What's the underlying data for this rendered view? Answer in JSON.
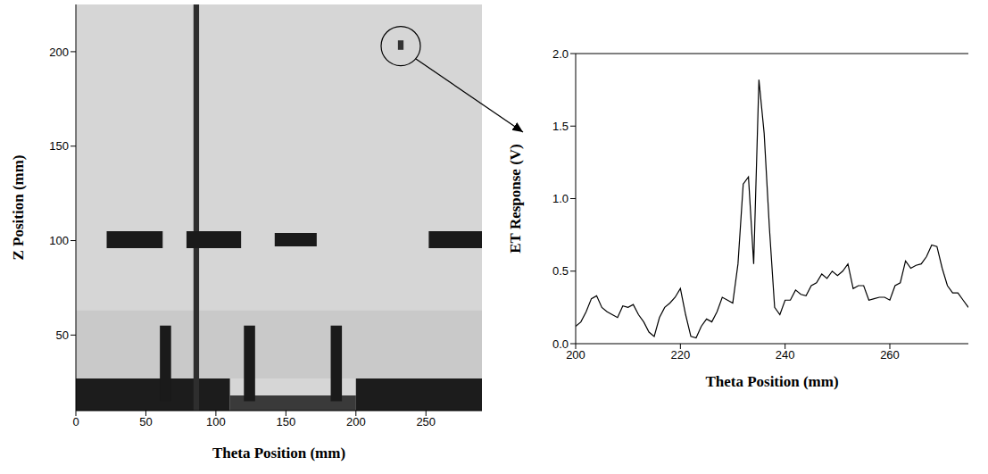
{
  "chart_data": [
    {
      "type": "image",
      "color": "#d6d6d6",
      "x_label": "Theta Position (mm)",
      "y_label": "Z Position (mm)",
      "xlim": [
        0,
        290
      ],
      "xticks": [
        0,
        50,
        100,
        150,
        200,
        250
      ],
      "ylim": [
        10,
        225
      ],
      "yticks": [
        50,
        100,
        150,
        200
      ],
      "regions": [
        {
          "x": [
            0,
            290
          ],
          "y": [
            27,
            63
          ],
          "color": "#c9c9c9"
        },
        {
          "x": [
            0,
            110
          ],
          "y": [
            10,
            27
          ],
          "color": "#1c1c1c"
        },
        {
          "x": [
            110,
            200
          ],
          "y": [
            10,
            18
          ],
          "color": "#3a3a3a"
        },
        {
          "x": [
            200,
            290
          ],
          "y": [
            10,
            27
          ],
          "color": "#1c1c1c"
        },
        {
          "x": [
            84,
            88
          ],
          "y": [
            10,
            225
          ],
          "color": "#2e2e2e"
        },
        {
          "x": [
            22,
            62
          ],
          "y": [
            96,
            105
          ],
          "color": "#1a1a1a"
        },
        {
          "x": [
            79,
            118
          ],
          "y": [
            96,
            105
          ],
          "color": "#1a1a1a"
        },
        {
          "x": [
            142,
            172
          ],
          "y": [
            97,
            104
          ],
          "color": "#1a1a1a"
        },
        {
          "x": [
            252,
            290
          ],
          "y": [
            96,
            105
          ],
          "color": "#1a1a1a"
        },
        {
          "x": [
            60,
            68
          ],
          "y": [
            15,
            55
          ],
          "color": "#1a1a1a"
        },
        {
          "x": [
            120,
            128
          ],
          "y": [
            15,
            55
          ],
          "color": "#1a1a1a"
        },
        {
          "x": [
            182,
            190
          ],
          "y": [
            15,
            55
          ],
          "color": "#1a1a1a"
        },
        {
          "x": [
            230,
            234
          ],
          "y": [
            201,
            206
          ],
          "color": "#333333"
        }
      ],
      "highlight": {
        "x": 232,
        "y": 203
      }
    },
    {
      "type": "line",
      "color": "#000000",
      "x_label": "Theta Position (mm)",
      "y_label": "ET Response (V)",
      "xlim": [
        200,
        275
      ],
      "xticks": [
        200,
        220,
        240,
        260
      ],
      "ylim": [
        0,
        2
      ],
      "yticks": [
        {
          "value": 0,
          "label": "0.0"
        },
        0.5,
        {
          "value": 1,
          "label": "1.0"
        },
        1.5,
        {
          "value": 2,
          "label": "2.0"
        }
      ],
      "x": [
        200,
        201,
        202,
        203,
        204,
        205,
        206,
        207,
        208,
        209,
        210,
        211,
        212,
        213,
        214,
        215,
        216,
        217,
        218,
        219,
        220,
        221,
        222,
        223,
        224,
        225,
        226,
        227,
        228,
        229,
        230,
        231,
        232,
        233,
        234,
        235,
        236,
        237,
        238,
        239,
        240,
        241,
        242,
        243,
        244,
        245,
        246,
        247,
        248,
        249,
        250,
        251,
        252,
        253,
        254,
        255,
        256,
        257,
        258,
        259,
        260,
        261,
        262,
        263,
        264,
        265,
        266,
        267,
        268,
        269,
        270,
        271,
        272,
        273,
        274,
        275
      ],
      "values": [
        0.12,
        0.15,
        0.22,
        0.31,
        0.33,
        0.25,
        0.22,
        0.2,
        0.18,
        0.26,
        0.25,
        0.27,
        0.2,
        0.15,
        0.08,
        0.05,
        0.18,
        0.25,
        0.28,
        0.32,
        0.38,
        0.2,
        0.05,
        0.04,
        0.12,
        0.17,
        0.15,
        0.22,
        0.32,
        0.3,
        0.28,
        0.55,
        1.1,
        1.15,
        0.55,
        1.82,
        1.45,
        0.8,
        0.25,
        0.2,
        0.3,
        0.3,
        0.37,
        0.34,
        0.33,
        0.4,
        0.42,
        0.48,
        0.45,
        0.5,
        0.47,
        0.5,
        0.55,
        0.38,
        0.4,
        0.4,
        0.3,
        0.31,
        0.32,
        0.32,
        0.3,
        0.4,
        0.42,
        0.57,
        0.52,
        0.54,
        0.55,
        0.6,
        0.68,
        0.67,
        0.52,
        0.4,
        0.35,
        0.35,
        0.3,
        0.25
      ]
    }
  ]
}
